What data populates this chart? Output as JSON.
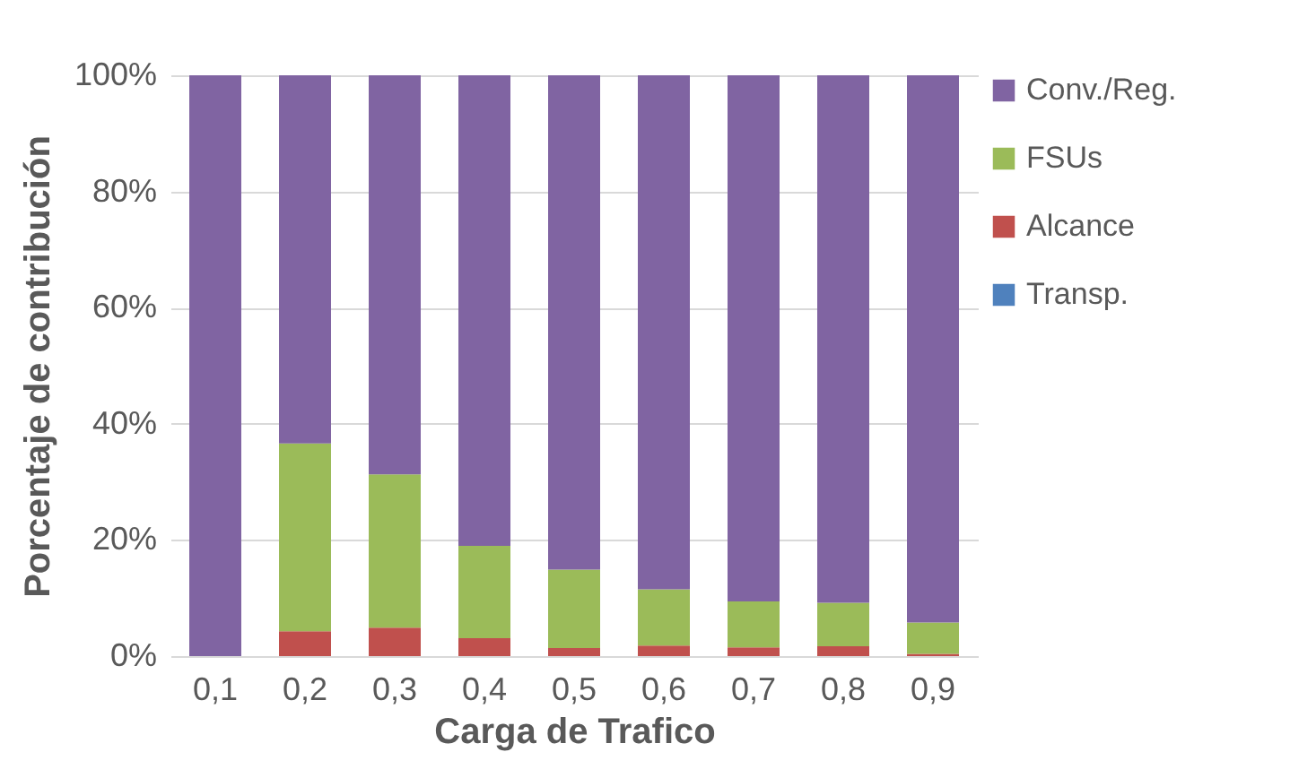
{
  "chart_data": {
    "type": "bar",
    "stacked": true,
    "xlabel": "Carga de Trafico",
    "ylabel": "Porcentaje de contribución",
    "categories": [
      "0,1",
      "0,2",
      "0,3",
      "0,4",
      "0,5",
      "0,6",
      "0,7",
      "0,8",
      "0,9"
    ],
    "series": [
      {
        "name": "Transp.",
        "color": "#4f81bd",
        "values": [
          0,
          0,
          0,
          0,
          0,
          0,
          0,
          0,
          0
        ]
      },
      {
        "name": "Alcance",
        "color": "#c0504d",
        "values": [
          0,
          4.3,
          4.9,
          3.1,
          1.4,
          1.8,
          1.5,
          1.7,
          0.4
        ]
      },
      {
        "name": "FSUs",
        "color": "#9bbb59",
        "values": [
          0,
          32.3,
          26.4,
          15.9,
          13.5,
          9.7,
          7.9,
          7.5,
          5.4
        ]
      },
      {
        "name": "Conv./Reg.",
        "color": "#8064a2",
        "values": [
          100,
          63.4,
          68.7,
          81,
          85.1,
          88.5,
          90.6,
          90.8,
          94.2
        ]
      }
    ],
    "ylim": [
      0,
      100
    ],
    "yticks": [
      {
        "value": 0,
        "label": "0%"
      },
      {
        "value": 20,
        "label": "20%"
      },
      {
        "value": 40,
        "label": "40%"
      },
      {
        "value": 60,
        "label": "60%"
      },
      {
        "value": 80,
        "label": "80%"
      },
      {
        "value": 100,
        "label": "100%"
      }
    ],
    "grid": "y",
    "legend": "right"
  }
}
